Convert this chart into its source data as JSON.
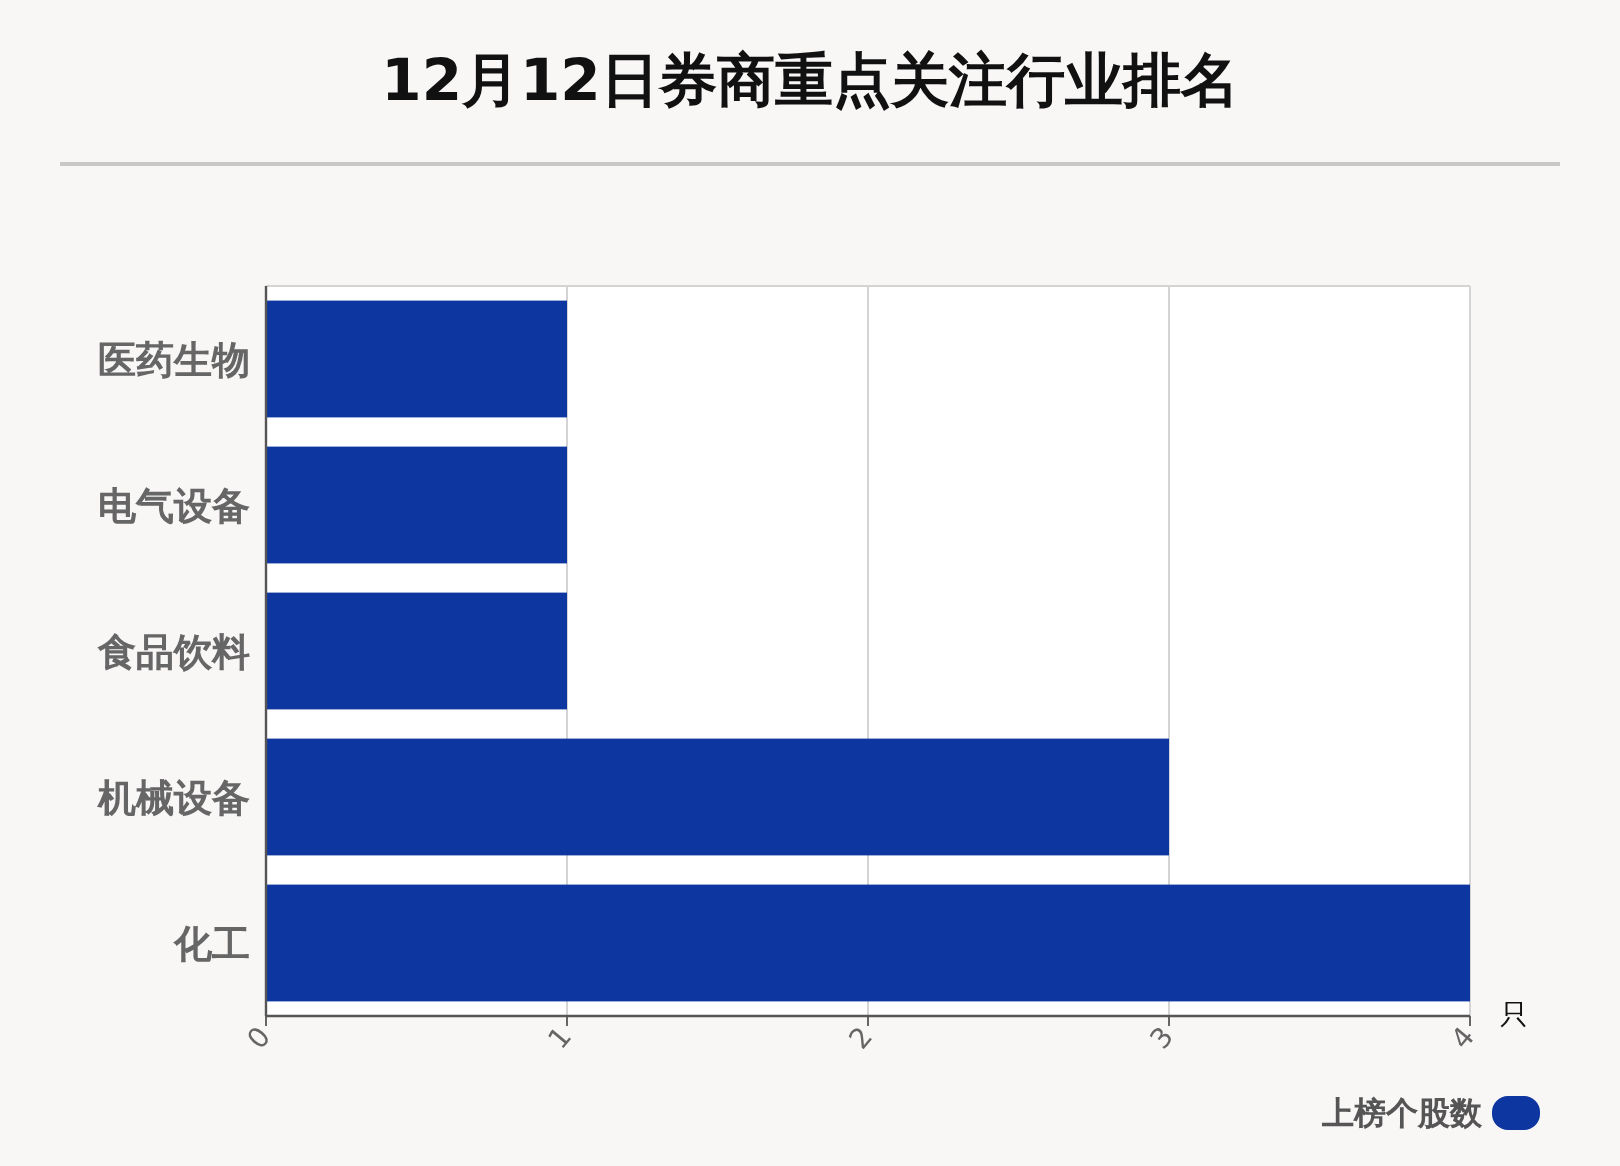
{
  "chart_data": {
    "type": "bar",
    "orientation": "horizontal",
    "title": "12月12日券商重点关注行业排名",
    "categories": [
      "医药生物",
      "电气设备",
      "食品饮料",
      "机械设备",
      "化工"
    ],
    "series": [
      {
        "name": "上榜个股数",
        "color": "#0d36a0",
        "values": [
          1,
          1,
          1,
          3,
          4
        ]
      }
    ],
    "xlabel": "只",
    "xlim": [
      0,
      4
    ],
    "xticks": [
      0,
      1,
      2,
      3,
      4
    ],
    "grid": "x",
    "legend": "bottom right"
  }
}
